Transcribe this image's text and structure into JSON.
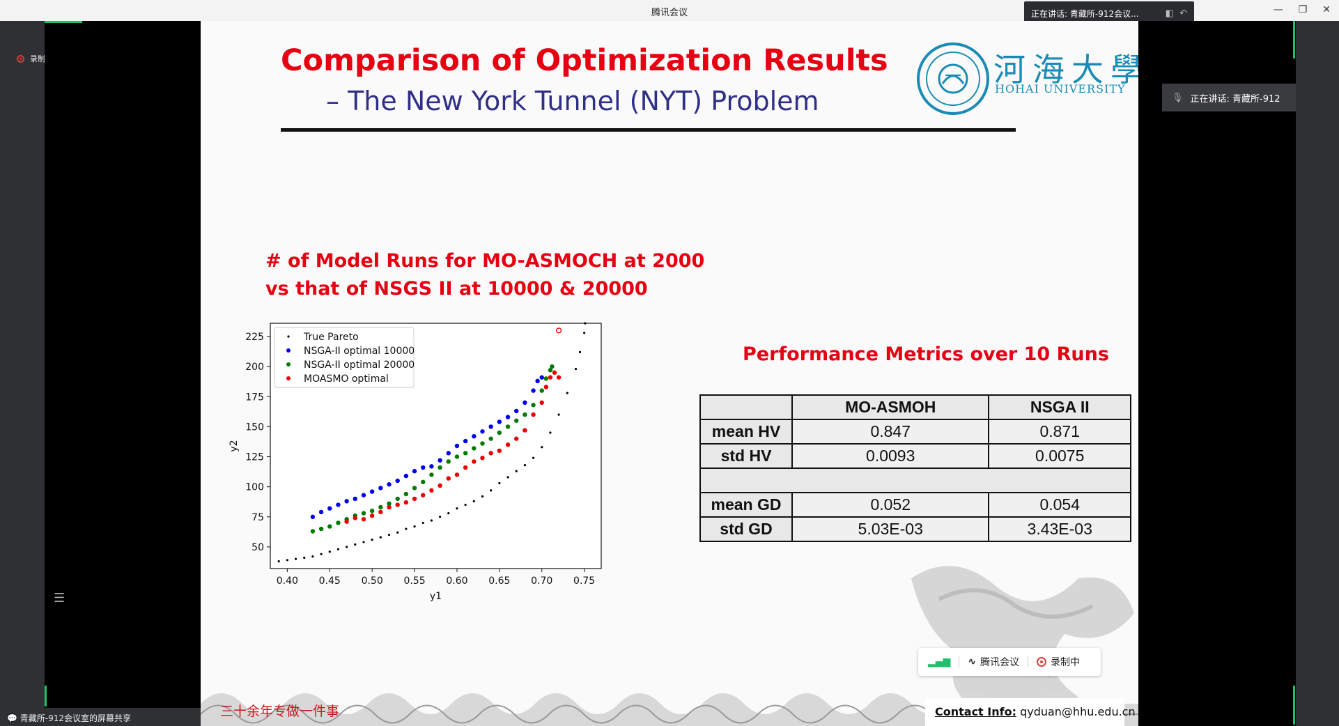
{
  "app": {
    "title": "腾讯会议",
    "speaking_label": "正在讲话: 青藏所-912会议...",
    "speaking_label_right": "正在讲话: 青藏所-912",
    "recording_label": "录制中",
    "share_label": "青藏所-912会议室的屏幕共享",
    "window_controls": {
      "minimize": "—",
      "restore": "❐",
      "close": "✕"
    }
  },
  "slide": {
    "title": "Comparison of Optimization Results",
    "subtitle": "– The New York Tunnel (NYT) Problem",
    "university_cn": "河海大學",
    "university_en": "HOHAI UNIVERSITY",
    "heading_line1": "# of Model Runs for MO-ASMOCH at 2000",
    "heading_line2": "vs that of NSGS II at 10000 & 20000",
    "metrics_title": "Performance Metrics over 10 Runs",
    "tagline": "三十余年专做一件事",
    "contact_label": "Contact Info:",
    "contact_email": "qyduan@hhu.edu.cn"
  },
  "metrics_table": {
    "headers": [
      "",
      "MO-ASMOH",
      "NSGA II"
    ],
    "rows": [
      {
        "label": "mean HV",
        "a": "0.847",
        "b": "0.871"
      },
      {
        "label": "std HV",
        "a": "0.0093",
        "b": "0.0075"
      },
      {
        "label": "mean GD",
        "a": "0.052",
        "b": "0.054"
      },
      {
        "label": "std GD",
        "a": "5.03E-03",
        "b": "3.43E-03"
      }
    ]
  },
  "meeting_bar": {
    "app_label": "腾讯会议",
    "recording_label": "录制中"
  },
  "chart_data": {
    "type": "scatter",
    "xlabel": "y1",
    "ylabel": "y2",
    "xlim": [
      0.38,
      0.77
    ],
    "ylim": [
      32,
      236
    ],
    "xticks": [
      0.4,
      0.45,
      0.5,
      0.55,
      0.6,
      0.65,
      0.7,
      0.75
    ],
    "xtick_labels": [
      "0.40",
      "0.45",
      "0.50",
      "0.55",
      "0.60",
      "0.65",
      "0.70",
      "0.75"
    ],
    "yticks": [
      50,
      75,
      100,
      125,
      150,
      175,
      200,
      225
    ],
    "ytick_labels": [
      "50",
      "75",
      "100",
      "125",
      "150",
      "175",
      "200",
      "225"
    ],
    "legend_position": "top-left",
    "series": [
      {
        "name": "True Pareto",
        "color": "#000000",
        "points": [
          [
            0.39,
            38
          ],
          [
            0.4,
            39
          ],
          [
            0.41,
            40
          ],
          [
            0.42,
            41
          ],
          [
            0.43,
            42
          ],
          [
            0.44,
            44
          ],
          [
            0.45,
            46
          ],
          [
            0.46,
            48
          ],
          [
            0.47,
            50
          ],
          [
            0.48,
            52
          ],
          [
            0.49,
            54
          ],
          [
            0.5,
            56
          ],
          [
            0.51,
            58
          ],
          [
            0.52,
            60
          ],
          [
            0.53,
            62
          ],
          [
            0.54,
            65
          ],
          [
            0.55,
            67
          ],
          [
            0.56,
            70
          ],
          [
            0.57,
            72
          ],
          [
            0.58,
            75
          ],
          [
            0.59,
            78
          ],
          [
            0.6,
            82
          ],
          [
            0.61,
            85
          ],
          [
            0.62,
            88
          ],
          [
            0.63,
            92
          ],
          [
            0.64,
            97
          ],
          [
            0.65,
            103
          ],
          [
            0.66,
            108
          ],
          [
            0.67,
            113
          ],
          [
            0.68,
            118
          ],
          [
            0.69,
            124
          ],
          [
            0.7,
            133
          ],
          [
            0.71,
            145
          ],
          [
            0.72,
            160
          ],
          [
            0.73,
            178
          ],
          [
            0.74,
            198
          ],
          [
            0.745,
            212
          ],
          [
            0.75,
            228
          ],
          [
            0.751,
            236
          ]
        ]
      },
      {
        "name": "NSGA-II optimal 10000",
        "color": "#0000ee",
        "points": [
          [
            0.43,
            75
          ],
          [
            0.44,
            79
          ],
          [
            0.45,
            82
          ],
          [
            0.46,
            85
          ],
          [
            0.47,
            88
          ],
          [
            0.48,
            90
          ],
          [
            0.49,
            93
          ],
          [
            0.5,
            96
          ],
          [
            0.51,
            99
          ],
          [
            0.52,
            102
          ],
          [
            0.53,
            105
          ],
          [
            0.54,
            109
          ],
          [
            0.55,
            113
          ],
          [
            0.56,
            116
          ],
          [
            0.57,
            117
          ],
          [
            0.58,
            122
          ],
          [
            0.59,
            128
          ],
          [
            0.6,
            134
          ],
          [
            0.61,
            138
          ],
          [
            0.62,
            142
          ],
          [
            0.63,
            146
          ],
          [
            0.64,
            150
          ],
          [
            0.65,
            154
          ],
          [
            0.66,
            158
          ],
          [
            0.67,
            163
          ],
          [
            0.68,
            170
          ],
          [
            0.69,
            180
          ],
          [
            0.695,
            188
          ],
          [
            0.7,
            191
          ]
        ]
      },
      {
        "name": "NSGA-II optimal 20000",
        "color": "#007a00",
        "points": [
          [
            0.43,
            63
          ],
          [
            0.44,
            65
          ],
          [
            0.45,
            67
          ],
          [
            0.46,
            70
          ],
          [
            0.47,
            73
          ],
          [
            0.48,
            76
          ],
          [
            0.49,
            78
          ],
          [
            0.5,
            80
          ],
          [
            0.51,
            83
          ],
          [
            0.52,
            86
          ],
          [
            0.53,
            90
          ],
          [
            0.54,
            94
          ],
          [
            0.55,
            99
          ],
          [
            0.56,
            104
          ],
          [
            0.57,
            110
          ],
          [
            0.58,
            116
          ],
          [
            0.59,
            121
          ],
          [
            0.6,
            125
          ],
          [
            0.61,
            128
          ],
          [
            0.62,
            132
          ],
          [
            0.63,
            136
          ],
          [
            0.64,
            140
          ],
          [
            0.65,
            145
          ],
          [
            0.66,
            150
          ],
          [
            0.67,
            155
          ],
          [
            0.68,
            160
          ],
          [
            0.69,
            168
          ],
          [
            0.7,
            180
          ],
          [
            0.705,
            190
          ],
          [
            0.71,
            197
          ],
          [
            0.712,
            200
          ]
        ]
      },
      {
        "name": "MOASMO optimal",
        "color": "#ee0000",
        "points": [
          [
            0.47,
            71
          ],
          [
            0.48,
            74
          ],
          [
            0.49,
            73
          ],
          [
            0.5,
            76
          ],
          [
            0.51,
            79
          ],
          [
            0.52,
            83
          ],
          [
            0.53,
            85
          ],
          [
            0.54,
            87
          ],
          [
            0.55,
            90
          ],
          [
            0.56,
            93
          ],
          [
            0.57,
            97
          ],
          [
            0.58,
            101
          ],
          [
            0.59,
            107
          ],
          [
            0.6,
            110
          ],
          [
            0.61,
            116
          ],
          [
            0.62,
            121
          ],
          [
            0.63,
            124
          ],
          [
            0.64,
            128
          ],
          [
            0.65,
            130
          ],
          [
            0.66,
            135
          ],
          [
            0.67,
            140
          ],
          [
            0.68,
            147
          ],
          [
            0.69,
            160
          ],
          [
            0.7,
            170
          ],
          [
            0.705,
            183
          ],
          [
            0.71,
            191
          ],
          [
            0.715,
            195
          ],
          [
            0.72,
            191
          ]
        ]
      }
    ],
    "outlier": {
      "x": 0.72,
      "y": 230,
      "color": "#ee0000"
    }
  }
}
